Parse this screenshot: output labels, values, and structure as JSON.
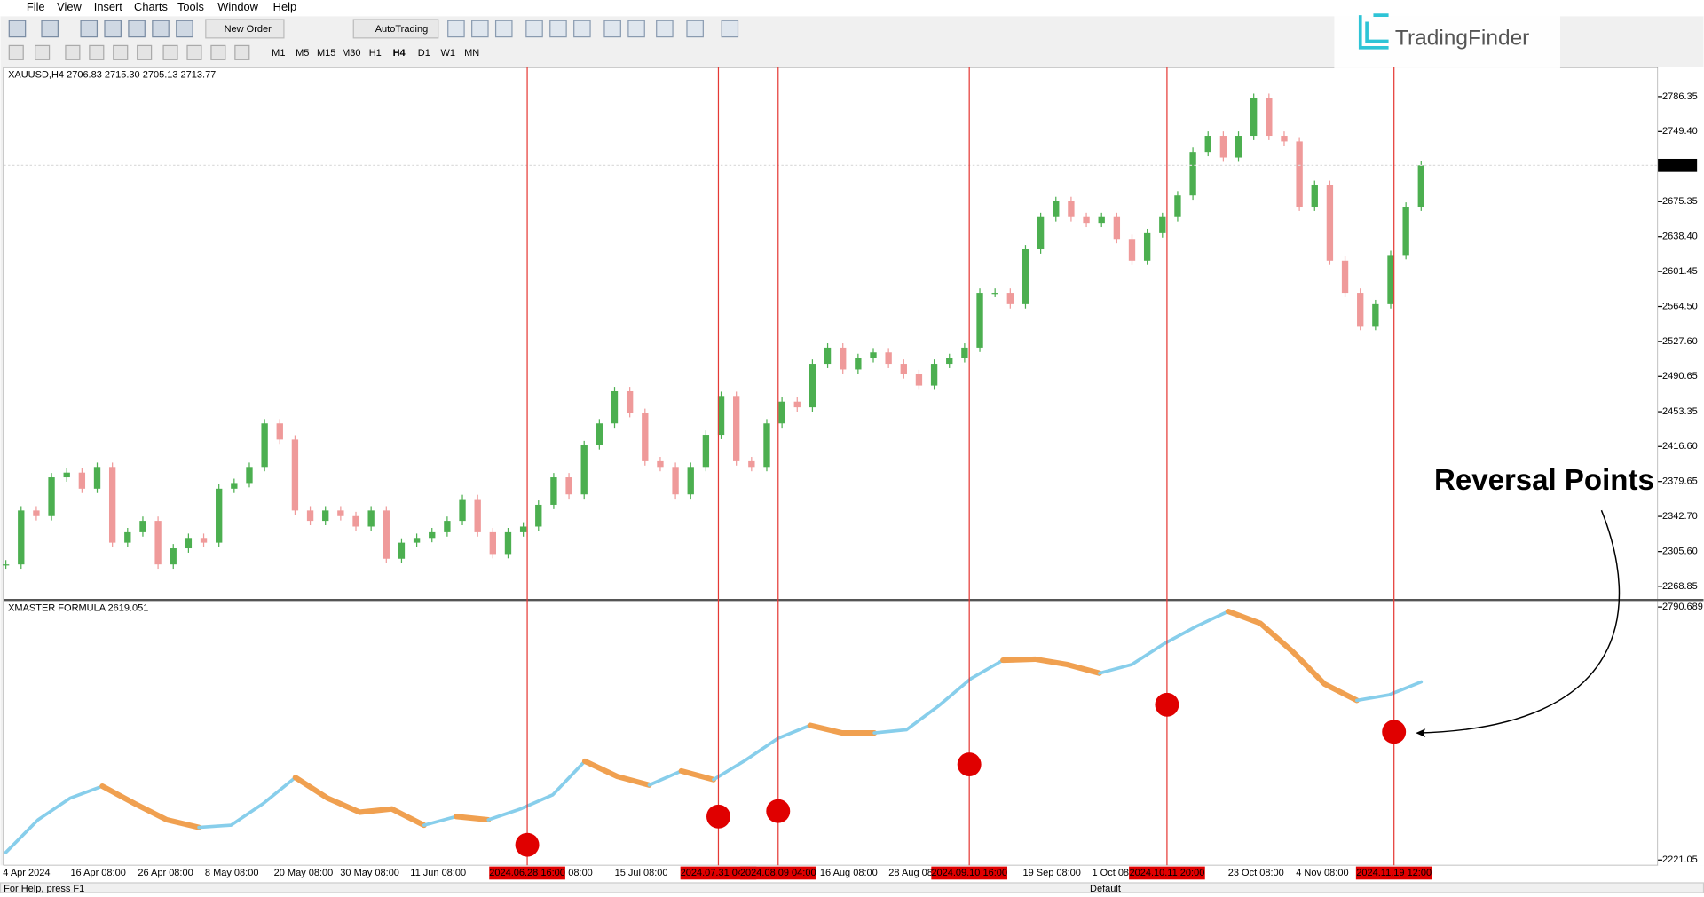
{
  "menu": [
    "File",
    "View",
    "Insert",
    "Charts",
    "Tools",
    "Window",
    "Help"
  ],
  "toolbar": {
    "new_order": "New Order",
    "autotrading": "AutoTrading",
    "timeframes": [
      "M1",
      "M5",
      "M15",
      "M30",
      "H1",
      "H4",
      "D1",
      "W1",
      "MN"
    ]
  },
  "logo": "TradingFinder",
  "annotation": "Reversal Points",
  "status_bar": [
    "For Help, press F1",
    "Default"
  ],
  "x_labels": [
    "4 Apr 2024",
    "16 Apr 08:00",
    "26 Apr 08:00",
    "8 May 08:00",
    "20 May 08:00",
    "30 May 08:00",
    "11 Jun 08:00",
    "08:00",
    "15 Jul 08:00",
    "16 Aug 08:00",
    "28 Aug 08",
    "19 Sep 08:00",
    "1 Oct 08",
    "23 Oct 08:00",
    "4 Nov 08:00"
  ],
  "signals": [
    "2024.06.28 16:00",
    "2024.07.31 04:00",
    "2024.08.09 04:00",
    "2024.09.10 16:00",
    "2024.10.11 20:00",
    "2024.11.19 12:00"
  ],
  "chart_data": [
    {
      "type": "candlestick",
      "title": "XAUUSD,H4 2706.83 2715.30 2705.13 2713.77",
      "last_price": 2713.77,
      "color_up": "#4caf50",
      "color_down": "#ef9a9a",
      "values": [
        2292,
        2349,
        2343,
        2384,
        2389,
        2372,
        2395,
        2315,
        2326,
        2338,
        2292,
        2309,
        2320,
        2315,
        2372,
        2378,
        2395,
        2441,
        2424,
        2349,
        2338,
        2349,
        2343,
        2332,
        2349,
        2298,
        2315,
        2320,
        2326,
        2338,
        2361,
        2326,
        2303,
        2326,
        2332,
        2355,
        2384,
        2366,
        2418,
        2441,
        2475,
        2452,
        2401,
        2395,
        2366,
        2395,
        2429,
        2470,
        2401,
        2395,
        2441,
        2464,
        2458,
        2504,
        2521,
        2498,
        2510,
        2516,
        2504,
        2493,
        2481,
        2504,
        2510,
        2521,
        2579,
        2579,
        2567,
        2625,
        2659,
        2676,
        2659,
        2653,
        2659,
        2636,
        2613,
        2642,
        2659,
        2682,
        2728,
        2745,
        2722,
        2745,
        2785,
        2745,
        2739,
        2670,
        2693,
        2613,
        2579,
        2544,
        2567,
        2619,
        2670,
        2713.77
      ],
      "ylim": [
        2255.05,
        2817.33
      ],
      "yticks": [
        2786.35,
        {
          "value": 2749.4,
          "label": "2749.40"
        },
        2675.35,
        {
          "value": 2638.4,
          "label": "2638.40"
        },
        2601.45,
        {
          "value": 2564.5,
          "label": "2564.50"
        },
        {
          "value": 2527.6,
          "label": "2527.60"
        },
        2490.65,
        2453.35,
        {
          "value": 2416.6,
          "label": "2416.60"
        },
        2379.65,
        {
          "value": 2342.7,
          "label": "2342.70"
        },
        {
          "value": 2305.6,
          "label": "2305.60"
        },
        2268.85
      ]
    },
    {
      "type": "line",
      "title": "XMASTER FORMULA 2619.051",
      "values": [
        2238.2,
        2311.5,
        2360.4,
        2387.3,
        2348.2,
        2311.5,
        2294.4,
        2299.3,
        2348.2,
        2406.9,
        2360.4,
        2328.6,
        2336,
        2299.3,
        2318.9,
        2311.5,
        2336,
        2367.7,
        2443.5,
        2409.3,
        2389.8,
        2421.5,
        2402,
        2446,
        2494.9,
        2524.2,
        2507.1,
        2507.1,
        2514.4,
        2568.2,
        2629.3,
        2670.9,
        2673.3,
        2661.1,
        2641.6,
        2661.1,
        2707.6,
        2746.7,
        2780.9,
        2754,
        2690.5,
        2617.1,
        2580.4,
        2592.7,
        2622
      ],
      "point_colors": [
        "#87ceeb",
        "#87ceeb",
        "#87ceeb",
        "#87ceeb",
        "#f0a050",
        "#f0a050",
        "#f0a050",
        "#87ceeb",
        "#87ceeb",
        "#87ceeb",
        "#f0a050",
        "#f0a050",
        "#f0a050",
        "#f0a050",
        "#87ceeb",
        "#f0a050",
        "#87ceeb",
        "#87ceeb",
        "#87ceeb",
        "#f0a050",
        "#f0a050",
        "#87ceeb",
        "#f0a050",
        "#87ceeb",
        "#87ceeb",
        "#87ceeb",
        "#f0a050",
        "#f0a050",
        "#87ceeb",
        "#87ceeb",
        "#87ceeb",
        "#87ceeb",
        "#f0a050",
        "#f0a050",
        "#f0a050",
        "#87ceeb",
        "#87ceeb",
        "#87ceeb",
        "#87ceeb",
        "#f0a050",
        "#f0a050",
        "#f0a050",
        "#f0a050",
        "#87ceeb",
        "#87ceeb"
      ],
      "ylim": [
        2213.7,
        2805.36
      ],
      "yticks": [
        2790.689,
        2221.05
      ]
    }
  ]
}
